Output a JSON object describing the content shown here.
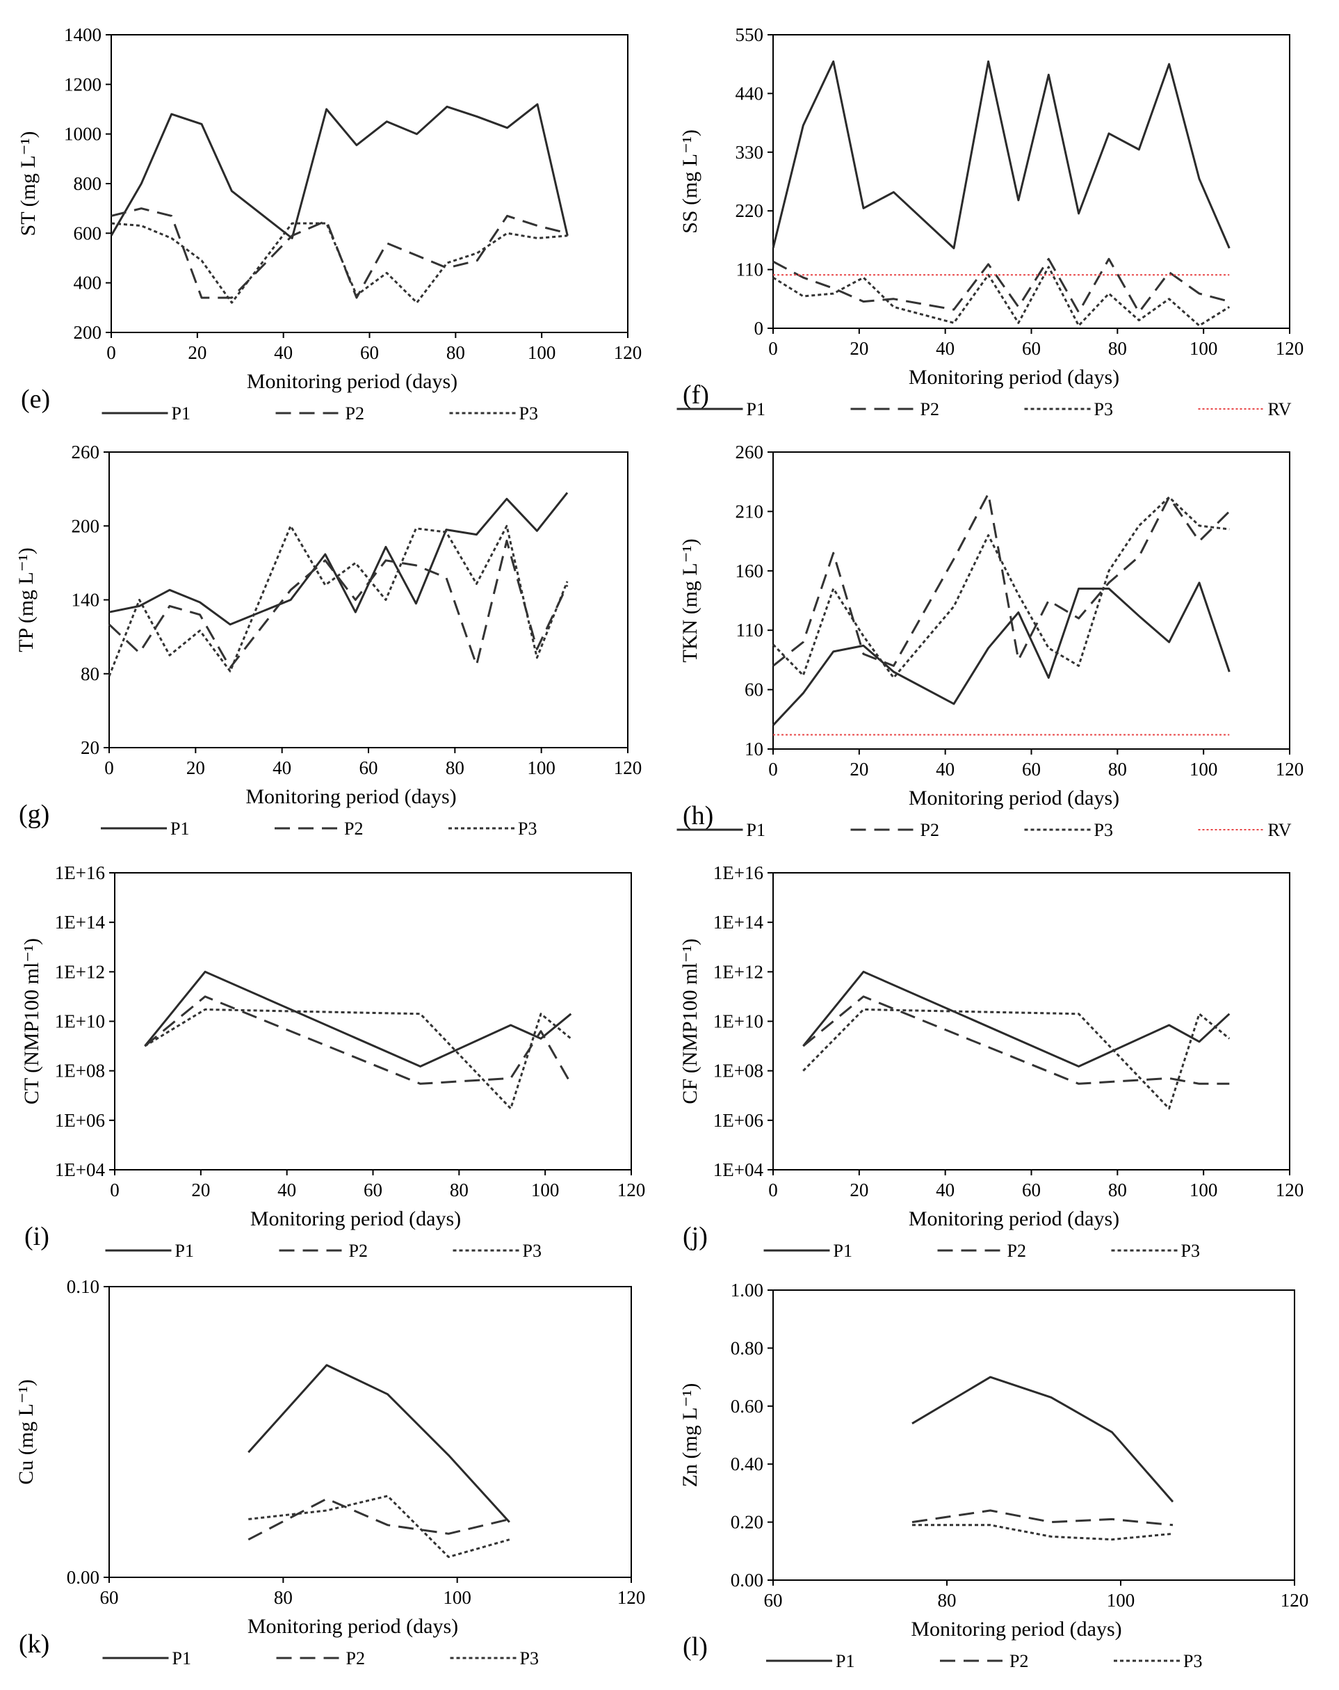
{
  "chart_data": [
    {
      "type": "line",
      "panel_label": "(e)",
      "ylabel": "ST (mg L⁻¹)",
      "xlabel": "Monitoring period (days)",
      "xlim": [
        0,
        120
      ],
      "xticks": [
        0,
        20,
        40,
        60,
        80,
        100,
        120
      ],
      "ylim": [
        200,
        1400
      ],
      "yticks": [
        200,
        400,
        600,
        800,
        1000,
        1200,
        1400
      ],
      "ytick_labels": [
        "200",
        "400",
        "600",
        "800",
        "1000",
        "1200",
        "1400"
      ],
      "series": [
        {
          "name": "P1",
          "style": "solid",
          "x": [
            0,
            7,
            14,
            21,
            28,
            42,
            50,
            57,
            64,
            71,
            78,
            85,
            92,
            99,
            106
          ],
          "y": [
            590,
            800,
            1080,
            1040,
            770,
            580,
            1100,
            955,
            1050,
            1000,
            1110,
            1070,
            1025,
            1120,
            590
          ]
        },
        {
          "name": "P2",
          "style": "dashed",
          "x": [
            0,
            7,
            14,
            21,
            28,
            42,
            50,
            57,
            64,
            71,
            78,
            85,
            92,
            99,
            106
          ],
          "y": [
            670,
            700,
            670,
            340,
            340,
            590,
            650,
            340,
            560,
            510,
            460,
            490,
            670,
            630,
            600
          ]
        },
        {
          "name": "P3",
          "style": "dotted",
          "x": [
            0,
            7,
            14,
            21,
            28,
            42,
            50,
            57,
            64,
            71,
            78,
            85,
            92,
            99,
            106
          ],
          "y": [
            640,
            630,
            580,
            490,
            320,
            640,
            640,
            350,
            440,
            320,
            480,
            520,
            600,
            580,
            590
          ]
        }
      ]
    },
    {
      "type": "line",
      "panel_label": "(f)",
      "ylabel": "SS (mg L⁻¹)",
      "xlabel": "Monitoring period (days)",
      "xlim": [
        0,
        120
      ],
      "xticks": [
        0,
        20,
        40,
        60,
        80,
        100,
        120
      ],
      "ylim": [
        0,
        550
      ],
      "yticks": [
        0,
        110,
        220,
        330,
        440,
        550
      ],
      "ytick_labels": [
        "0",
        "110",
        "220",
        "330",
        "440",
        "550"
      ],
      "series": [
        {
          "name": "P1",
          "style": "solid",
          "x": [
            0,
            7,
            14,
            21,
            28,
            42,
            50,
            57,
            64,
            71,
            78,
            85,
            92,
            99,
            106
          ],
          "y": [
            150,
            380,
            500,
            225,
            255,
            150,
            500,
            240,
            475,
            215,
            365,
            335,
            495,
            280,
            150
          ]
        },
        {
          "name": "P2",
          "style": "dashed",
          "x": [
            0,
            7,
            14,
            21,
            28,
            42,
            50,
            57,
            64,
            71,
            78,
            85,
            92,
            99,
            106
          ],
          "y": [
            125,
            95,
            75,
            50,
            55,
            35,
            120,
            40,
            130,
            30,
            130,
            30,
            105,
            65,
            50
          ]
        },
        {
          "name": "P3",
          "style": "dotted",
          "x": [
            0,
            7,
            14,
            21,
            28,
            42,
            50,
            57,
            64,
            71,
            78,
            85,
            92,
            99,
            106
          ],
          "y": [
            95,
            60,
            65,
            95,
            40,
            10,
            100,
            10,
            115,
            5,
            65,
            15,
            55,
            5,
            40
          ]
        },
        {
          "name": "RV",
          "style": "reference",
          "color": "#e8484a",
          "x": [
            0,
            106
          ],
          "y": [
            100,
            100
          ]
        }
      ]
    },
    {
      "type": "line",
      "panel_label": "(g)",
      "ylabel": "TP (mg L⁻¹)",
      "xlabel": "Monitoring period (days)",
      "xlim": [
        0,
        120
      ],
      "xticks": [
        0,
        20,
        40,
        60,
        80,
        100,
        120
      ],
      "ylim": [
        20,
        260
      ],
      "yticks": [
        20,
        80,
        140,
        200,
        260
      ],
      "ytick_labels": [
        "20",
        "80",
        "140",
        "200",
        "260"
      ],
      "series": [
        {
          "name": "P1",
          "style": "solid",
          "x": [
            0,
            7,
            14,
            21,
            28,
            42,
            50,
            57,
            64,
            71,
            78,
            85,
            92,
            99,
            106
          ],
          "y": [
            130,
            135,
            148,
            138,
            120,
            140,
            177,
            130,
            183,
            137,
            197,
            193,
            222,
            196,
            227
          ]
        },
        {
          "name": "P2",
          "style": "dashed",
          "x": [
            0,
            7,
            14,
            21,
            28,
            42,
            50,
            57,
            64,
            71,
            78,
            85,
            92,
            99,
            106
          ],
          "y": [
            120,
            97,
            135,
            128,
            85,
            148,
            172,
            140,
            172,
            168,
            158,
            87,
            188,
            100,
            152
          ]
        },
        {
          "name": "P3",
          "style": "dotted",
          "x": [
            0,
            7,
            14,
            21,
            28,
            42,
            50,
            57,
            64,
            71,
            78,
            85,
            92,
            99,
            106
          ],
          "y": [
            78,
            140,
            95,
            115,
            82,
            200,
            152,
            170,
            140,
            198,
            195,
            153,
            200,
            93,
            155
          ]
        }
      ]
    },
    {
      "type": "line",
      "panel_label": "(h)",
      "ylabel": "TKN (mg L⁻¹)",
      "xlabel": "Monitoring period (days)",
      "xlim": [
        0,
        120
      ],
      "xticks": [
        0,
        20,
        40,
        60,
        80,
        100,
        120
      ],
      "ylim": [
        10,
        260
      ],
      "yticks": [
        10,
        60,
        110,
        160,
        210,
        260
      ],
      "ytick_labels": [
        "10",
        "60",
        "110",
        "160",
        "210",
        "260"
      ],
      "series": [
        {
          "name": "P1",
          "style": "solid",
          "x": [
            0,
            7,
            14,
            21,
            28,
            42,
            50,
            57,
            64,
            71,
            78,
            85,
            92,
            99,
            106
          ],
          "y": [
            30,
            57,
            92,
            97,
            75,
            48,
            95,
            125,
            70,
            145,
            145,
            122,
            100,
            150,
            75
          ]
        },
        {
          "name": "P2",
          "style": "dashed",
          "x": [
            0,
            7,
            14,
            21,
            28,
            42,
            50,
            57,
            64,
            71,
            78,
            85,
            92,
            99,
            106
          ],
          "y": [
            80,
            100,
            175,
            90,
            80,
            170,
            225,
            85,
            135,
            120,
            150,
            172,
            222,
            185,
            210
          ]
        },
        {
          "name": "P3",
          "style": "dotted",
          "x": [
            0,
            7,
            14,
            21,
            28,
            42,
            50,
            57,
            64,
            71,
            78,
            85,
            92,
            99,
            106
          ],
          "y": [
            98,
            72,
            145,
            105,
            70,
            130,
            190,
            140,
            95,
            80,
            160,
            198,
            222,
            198,
            195
          ]
        },
        {
          "name": "RV",
          "style": "reference",
          "color": "#e8484a",
          "x": [
            0,
            106
          ],
          "y": [
            22,
            22
          ]
        }
      ]
    },
    {
      "type": "line",
      "panel_label": "(i)",
      "ylabel": "CT (NMP100 ml⁻¹)",
      "xlabel": "Monitoring period (days)",
      "yscale": "log",
      "xlim": [
        0,
        120
      ],
      "xticks": [
        0,
        20,
        40,
        60,
        80,
        100,
        120
      ],
      "ylim": [
        10000,
        10000000000000000
      ],
      "yticks": [
        10000,
        1000000,
        100000000,
        10000000000,
        1000000000000,
        100000000000000,
        10000000000000000
      ],
      "ytick_labels": [
        "1E+04",
        "1E+06",
        "1E+08",
        "1E+10",
        "1E+12",
        "1E+14",
        "1E+16"
      ],
      "series": [
        {
          "name": "P1",
          "style": "solid",
          "x": [
            7,
            21,
            71,
            92,
            99,
            106
          ],
          "y": [
            1000000000,
            1000000000000,
            150000000,
            7000000000,
            2000000000,
            20000000000
          ]
        },
        {
          "name": "P2",
          "style": "dashed",
          "x": [
            7,
            21,
            71,
            92,
            99,
            106
          ],
          "y": [
            1000000000,
            100000000000,
            30000000,
            50000000,
            4000000000,
            30000000
          ]
        },
        {
          "name": "P3",
          "style": "dotted",
          "x": [
            7,
            21,
            71,
            92,
            99,
            106
          ],
          "y": [
            1000000000,
            30000000000,
            20000000000,
            3000000,
            20000000000,
            2000000000
          ]
        }
      ]
    },
    {
      "type": "line",
      "panel_label": "(j)",
      "ylabel": "CF (NMP100 ml⁻¹)",
      "xlabel": "Monitoring period (days)",
      "yscale": "log",
      "xlim": [
        0,
        120
      ],
      "xticks": [
        0,
        20,
        40,
        60,
        80,
        100,
        120
      ],
      "ylim": [
        10000,
        10000000000000000
      ],
      "yticks": [
        10000,
        1000000,
        100000000,
        10000000000,
        1000000000000,
        100000000000000,
        10000000000000000
      ],
      "ytick_labels": [
        "1E+04",
        "1E+06",
        "1E+08",
        "1E+10",
        "1E+12",
        "1E+14",
        "1E+16"
      ],
      "series": [
        {
          "name": "P1",
          "style": "solid",
          "x": [
            7,
            21,
            71,
            92,
            99,
            106
          ],
          "y": [
            1000000000,
            1000000000000,
            150000000,
            7000000000,
            1500000000,
            20000000000
          ]
        },
        {
          "name": "P2",
          "style": "dashed",
          "x": [
            7,
            21,
            71,
            92,
            99,
            106
          ],
          "y": [
            1000000000,
            100000000000,
            30000000,
            50000000,
            30000000,
            30000000
          ]
        },
        {
          "name": "P3",
          "style": "dotted",
          "x": [
            7,
            21,
            71,
            92,
            99,
            106
          ],
          "y": [
            100000000,
            30000000000,
            20000000000,
            3000000,
            20000000000,
            2000000000
          ]
        }
      ]
    },
    {
      "type": "line",
      "panel_label": "(k)",
      "ylabel": "Cu (mg L⁻¹)",
      "xlabel": "Monitoring period (days)",
      "xlim": [
        60,
        120
      ],
      "xticks": [
        60,
        80,
        100,
        120
      ],
      "ylim": [
        0,
        0.1
      ],
      "yticks": [
        0,
        0.1
      ],
      "ytick_labels": [
        "0.00",
        "0.10"
      ],
      "series": [
        {
          "name": "P1",
          "style": "solid",
          "x": [
            76,
            85,
            92,
            99,
            106
          ],
          "y": [
            0.043,
            0.073,
            0.063,
            0.042,
            0.019
          ]
        },
        {
          "name": "P2",
          "style": "dashed",
          "x": [
            76,
            85,
            92,
            99,
            106
          ],
          "y": [
            0.013,
            0.027,
            0.018,
            0.015,
            0.02
          ]
        },
        {
          "name": "P3",
          "style": "dotted",
          "x": [
            76,
            85,
            92,
            99,
            106
          ],
          "y": [
            0.02,
            0.023,
            0.028,
            0.007,
            0.013
          ]
        }
      ]
    },
    {
      "type": "line",
      "panel_label": "(l)",
      "ylabel": "Zn (mg L⁻¹)",
      "xlabel": "Monitoring period (days)",
      "xlim": [
        60,
        120
      ],
      "xticks": [
        60,
        80,
        100,
        120
      ],
      "ylim": [
        0,
        1
      ],
      "yticks": [
        0,
        0.2,
        0.4,
        0.6,
        0.8,
        1
      ],
      "ytick_labels": [
        "0.00",
        "0.20",
        "0.40",
        "0.60",
        "0.80",
        "1.00"
      ],
      "series": [
        {
          "name": "P1",
          "style": "solid",
          "x": [
            76,
            85,
            92,
            99,
            106
          ],
          "y": [
            0.54,
            0.7,
            0.63,
            0.51,
            0.27
          ]
        },
        {
          "name": "P2",
          "style": "dashed",
          "x": [
            76,
            85,
            92,
            99,
            106
          ],
          "y": [
            0.2,
            0.24,
            0.2,
            0.21,
            0.19
          ]
        },
        {
          "name": "P3",
          "style": "dotted",
          "x": [
            76,
            85,
            92,
            99,
            106
          ],
          "y": [
            0.19,
            0.19,
            0.15,
            0.14,
            0.16
          ]
        }
      ]
    }
  ]
}
